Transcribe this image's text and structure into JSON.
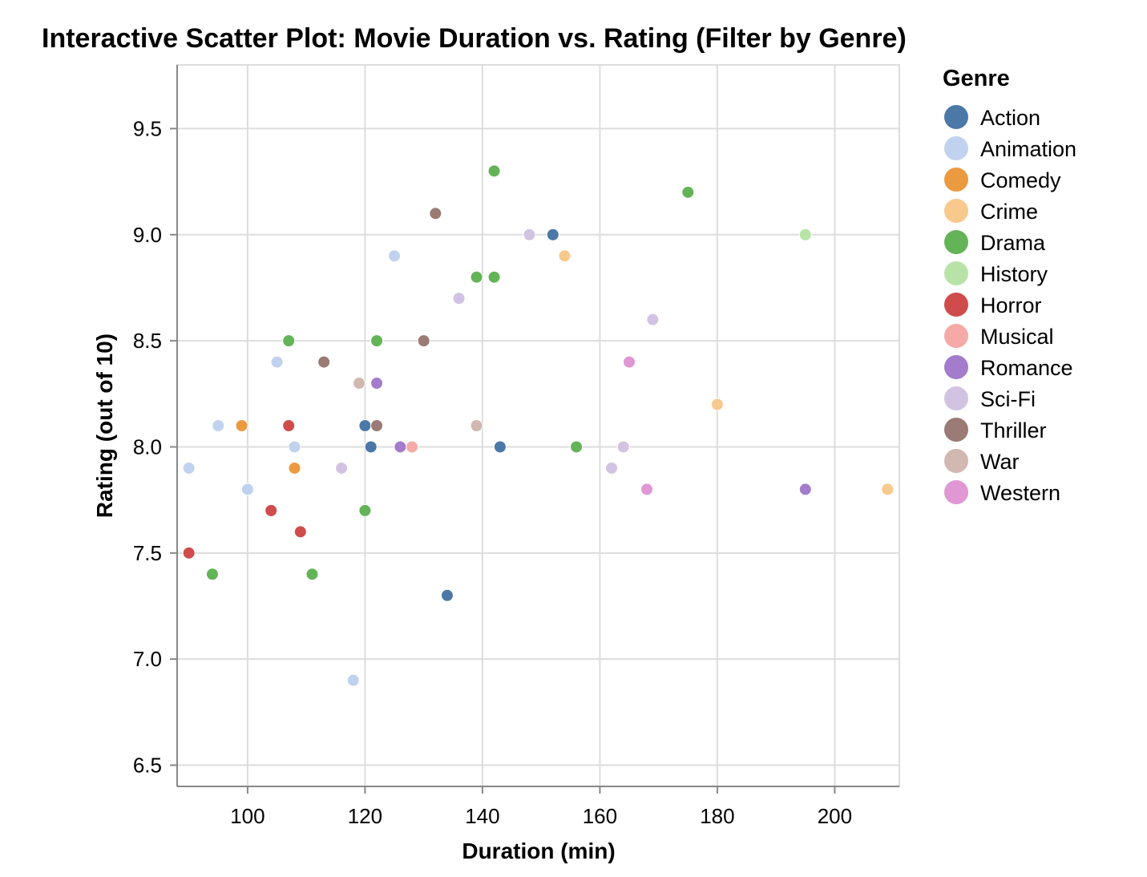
{
  "chart_data": {
    "type": "scatter",
    "title": "Interactive Scatter Plot: Movie Duration vs. Rating (Filter by Genre)",
    "xlabel": "Duration (min)",
    "ylabel": "Rating (out of 10)",
    "xlim": [
      88,
      211
    ],
    "ylim": [
      6.4,
      9.8
    ],
    "x_ticks": [
      100,
      120,
      140,
      160,
      180,
      200
    ],
    "y_ticks": [
      6.5,
      7.0,
      7.5,
      8.0,
      8.5,
      9.0,
      9.5
    ],
    "x_tick_labels": [
      "100",
      "120",
      "140",
      "160",
      "180",
      "200"
    ],
    "y_tick_labels": [
      "6.5",
      "7.0",
      "7.5",
      "8.0",
      "8.5",
      "9.0",
      "9.5"
    ],
    "grid": true,
    "legend": {
      "title": "Genre",
      "placement": "right"
    },
    "series": [
      {
        "name": "Action",
        "color": "#4c78a8",
        "points": [
          {
            "x": 152,
            "y": 9.0
          },
          {
            "x": 120,
            "y": 8.1
          },
          {
            "x": 121,
            "y": 8.0
          },
          {
            "x": 143,
            "y": 8.0
          },
          {
            "x": 134,
            "y": 7.3
          }
        ]
      },
      {
        "name": "Animation",
        "color": "#c0d2ee",
        "points": [
          {
            "x": 125,
            "y": 8.9
          },
          {
            "x": 105,
            "y": 8.4
          },
          {
            "x": 95,
            "y": 8.1
          },
          {
            "x": 108,
            "y": 8.0
          },
          {
            "x": 90,
            "y": 7.9
          },
          {
            "x": 100,
            "y": 7.8
          },
          {
            "x": 118,
            "y": 6.9
          }
        ]
      },
      {
        "name": "Comedy",
        "color": "#ec9a3f",
        "points": [
          {
            "x": 99,
            "y": 8.1
          },
          {
            "x": 108,
            "y": 7.9
          }
        ]
      },
      {
        "name": "Crime",
        "color": "#f8c98d",
        "points": [
          {
            "x": 154,
            "y": 8.9
          },
          {
            "x": 180,
            "y": 8.2
          },
          {
            "x": 209,
            "y": 7.8
          }
        ]
      },
      {
        "name": "Drama",
        "color": "#63b457",
        "points": [
          {
            "x": 142,
            "y": 9.3
          },
          {
            "x": 175,
            "y": 9.2
          },
          {
            "x": 139,
            "y": 8.8
          },
          {
            "x": 142,
            "y": 8.8
          },
          {
            "x": 107,
            "y": 8.5
          },
          {
            "x": 122,
            "y": 8.5
          },
          {
            "x": 156,
            "y": 8.0
          },
          {
            "x": 120,
            "y": 7.7
          },
          {
            "x": 94,
            "y": 7.4
          },
          {
            "x": 111,
            "y": 7.4
          }
        ]
      },
      {
        "name": "History",
        "color": "#b8e3a7",
        "points": [
          {
            "x": 195,
            "y": 9.0
          }
        ]
      },
      {
        "name": "Horror",
        "color": "#d04c4c",
        "points": [
          {
            "x": 107,
            "y": 8.1
          },
          {
            "x": 104,
            "y": 7.7
          },
          {
            "x": 109,
            "y": 7.6
          },
          {
            "x": 90,
            "y": 7.5
          }
        ]
      },
      {
        "name": "Musical",
        "color": "#f5aaa8",
        "points": [
          {
            "x": 128,
            "y": 8.0
          }
        ]
      },
      {
        "name": "Romance",
        "color": "#a37ccc",
        "points": [
          {
            "x": 122,
            "y": 8.3
          },
          {
            "x": 126,
            "y": 8.0
          },
          {
            "x": 195,
            "y": 7.8
          }
        ]
      },
      {
        "name": "Sci-Fi",
        "color": "#d3c3e2",
        "points": [
          {
            "x": 148,
            "y": 9.0
          },
          {
            "x": 136,
            "y": 8.7
          },
          {
            "x": 169,
            "y": 8.6
          },
          {
            "x": 116,
            "y": 7.9
          },
          {
            "x": 164,
            "y": 8.0
          },
          {
            "x": 162,
            "y": 7.9
          }
        ]
      },
      {
        "name": "Thriller",
        "color": "#9b7b75",
        "points": [
          {
            "x": 132,
            "y": 9.1
          },
          {
            "x": 130,
            "y": 8.5
          },
          {
            "x": 113,
            "y": 8.4
          },
          {
            "x": 122,
            "y": 8.1
          }
        ]
      },
      {
        "name": "War",
        "color": "#d1b8b0",
        "points": [
          {
            "x": 119,
            "y": 8.3
          },
          {
            "x": 139,
            "y": 8.1
          }
        ]
      },
      {
        "name": "Western",
        "color": "#e097d3",
        "points": [
          {
            "x": 165,
            "y": 8.4
          },
          {
            "x": 168,
            "y": 7.8
          }
        ]
      }
    ]
  }
}
